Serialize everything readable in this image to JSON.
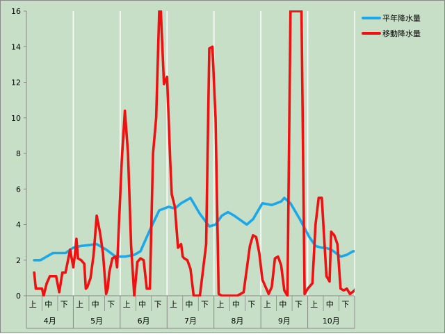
{
  "chart_data": {
    "type": "line",
    "title": "",
    "xlabel": "",
    "ylabel": "",
    "ylim": [
      0,
      16
    ],
    "yticks": [
      "0",
      "2",
      "4",
      "6",
      "8",
      "10",
      "12",
      "14",
      "16"
    ],
    "grid": "vertical",
    "legend_position": "top-right",
    "months": [
      "4月",
      "5月",
      "6月",
      "7月",
      "8月",
      "9月",
      "10月"
    ],
    "periods": [
      "上",
      "中",
      "下"
    ],
    "colors": {
      "background": "#c6dfc6",
      "平年": "#1ca8e8",
      "移動": "#ee1111",
      "axis": "#888888"
    },
    "series": [
      {
        "name": "平年降水量",
        "color": "#1ca8e8",
        "x": [
          0,
          0.4,
          0.8,
          1.2,
          2.0,
          2.5,
          3.0,
          4.0,
          4.6,
          5.2,
          5.8,
          6.4,
          6.8,
          7.4,
          8.0,
          8.6,
          9.0,
          9.4,
          10.0,
          10.6,
          11.2,
          11.6,
          12.0,
          12.4,
          12.8,
          13.6,
          14.0,
          14.6,
          15.2,
          15.8,
          16.0,
          16.4,
          17.0,
          17.6,
          18.0,
          18.4,
          18.6,
          19.0,
          19.6,
          20.0,
          20.4,
          20.7
        ],
        "values": [
          2.0,
          2.0,
          2.2,
          2.4,
          2.4,
          2.7,
          2.8,
          2.9,
          2.6,
          2.2,
          2.2,
          2.3,
          2.5,
          3.7,
          4.8,
          5.0,
          4.9,
          5.2,
          5.5,
          4.6,
          3.9,
          4.0,
          4.5,
          4.7,
          4.5,
          4.0,
          4.3,
          5.2,
          5.1,
          5.3,
          5.5,
          5.2,
          4.3,
          3.3,
          2.8,
          2.7,
          2.7,
          2.6,
          2.2,
          2.3,
          2.5,
          2.5
        ]
      },
      {
        "name": "移動降水量",
        "color": "#ee1111",
        "x": [
          0,
          0.1,
          0.5,
          0.6,
          0.8,
          1.0,
          1.4,
          1.6,
          1.8,
          2.0,
          2.3,
          2.5,
          2.6,
          2.7,
          2.8,
          3.0,
          3.2,
          3.3,
          3.4,
          3.6,
          3.8,
          4.0,
          4.2,
          4.4,
          4.6,
          4.7,
          4.8,
          5.0,
          5.2,
          5.3,
          5.6,
          5.8,
          6.0,
          6.2,
          6.4,
          6.6,
          6.8,
          7.0,
          7.2,
          7.4,
          7.6,
          7.8,
          8.0,
          8.1,
          8.3,
          8.5,
          8.7,
          8.8,
          9.0,
          9.2,
          9.4,
          9.5,
          9.6,
          9.8,
          10.0,
          10.2,
          10.4,
          10.6,
          11.0,
          11.2,
          11.4,
          11.6,
          11.8,
          12.0,
          12.2,
          12.4,
          12.6,
          13.0,
          13.4,
          13.6,
          13.8,
          14.0,
          14.2,
          14.4,
          14.6,
          14.8,
          15.0,
          15.2,
          15.4,
          15.6,
          15.8,
          16.0,
          16.2,
          16.4,
          16.5,
          16.8,
          17.1,
          17.3,
          17.5,
          17.8,
          18.0,
          18.2,
          18.4,
          18.7,
          18.9,
          19.0,
          19.2,
          19.4,
          19.6,
          19.8,
          20.0,
          20.2,
          20.5,
          20.7
        ],
        "values": [
          1.3,
          0.4,
          0.4,
          0.0,
          0.7,
          1.1,
          1.1,
          0.2,
          1.3,
          1.3,
          2.6,
          1.6,
          2.3,
          3.2,
          2.1,
          2.0,
          1.8,
          0.4,
          0.5,
          1.0,
          2.3,
          4.5,
          3.6,
          2.4,
          0.1,
          0.4,
          1.3,
          2.1,
          2.2,
          1.6,
          7.6,
          10.4,
          8.0,
          2.8,
          0.0,
          1.9,
          2.1,
          2.0,
          0.4,
          0.4,
          8.0,
          10.0,
          16.0,
          16.0,
          11.9,
          12.3,
          7.6,
          5.7,
          5.0,
          2.7,
          2.9,
          2.2,
          2.1,
          2.0,
          1.5,
          0.0,
          0.0,
          0.0,
          2.9,
          13.9,
          14.0,
          10.0,
          0.1,
          0.0,
          0.0,
          0.0,
          0.0,
          0.0,
          0.2,
          1.5,
          2.8,
          3.4,
          3.3,
          2.4,
          0.9,
          0.5,
          0.1,
          0.5,
          2.1,
          2.2,
          1.7,
          0.3,
          0.0,
          16.0,
          16.0,
          16.0,
          16.0,
          0.1,
          0.4,
          0.7,
          4.0,
          5.5,
          5.5,
          1.1,
          0.8,
          3.6,
          3.4,
          2.9,
          0.4,
          0.3,
          0.4,
          0.1,
          0.3,
          0.6
        ]
      }
    ]
  }
}
